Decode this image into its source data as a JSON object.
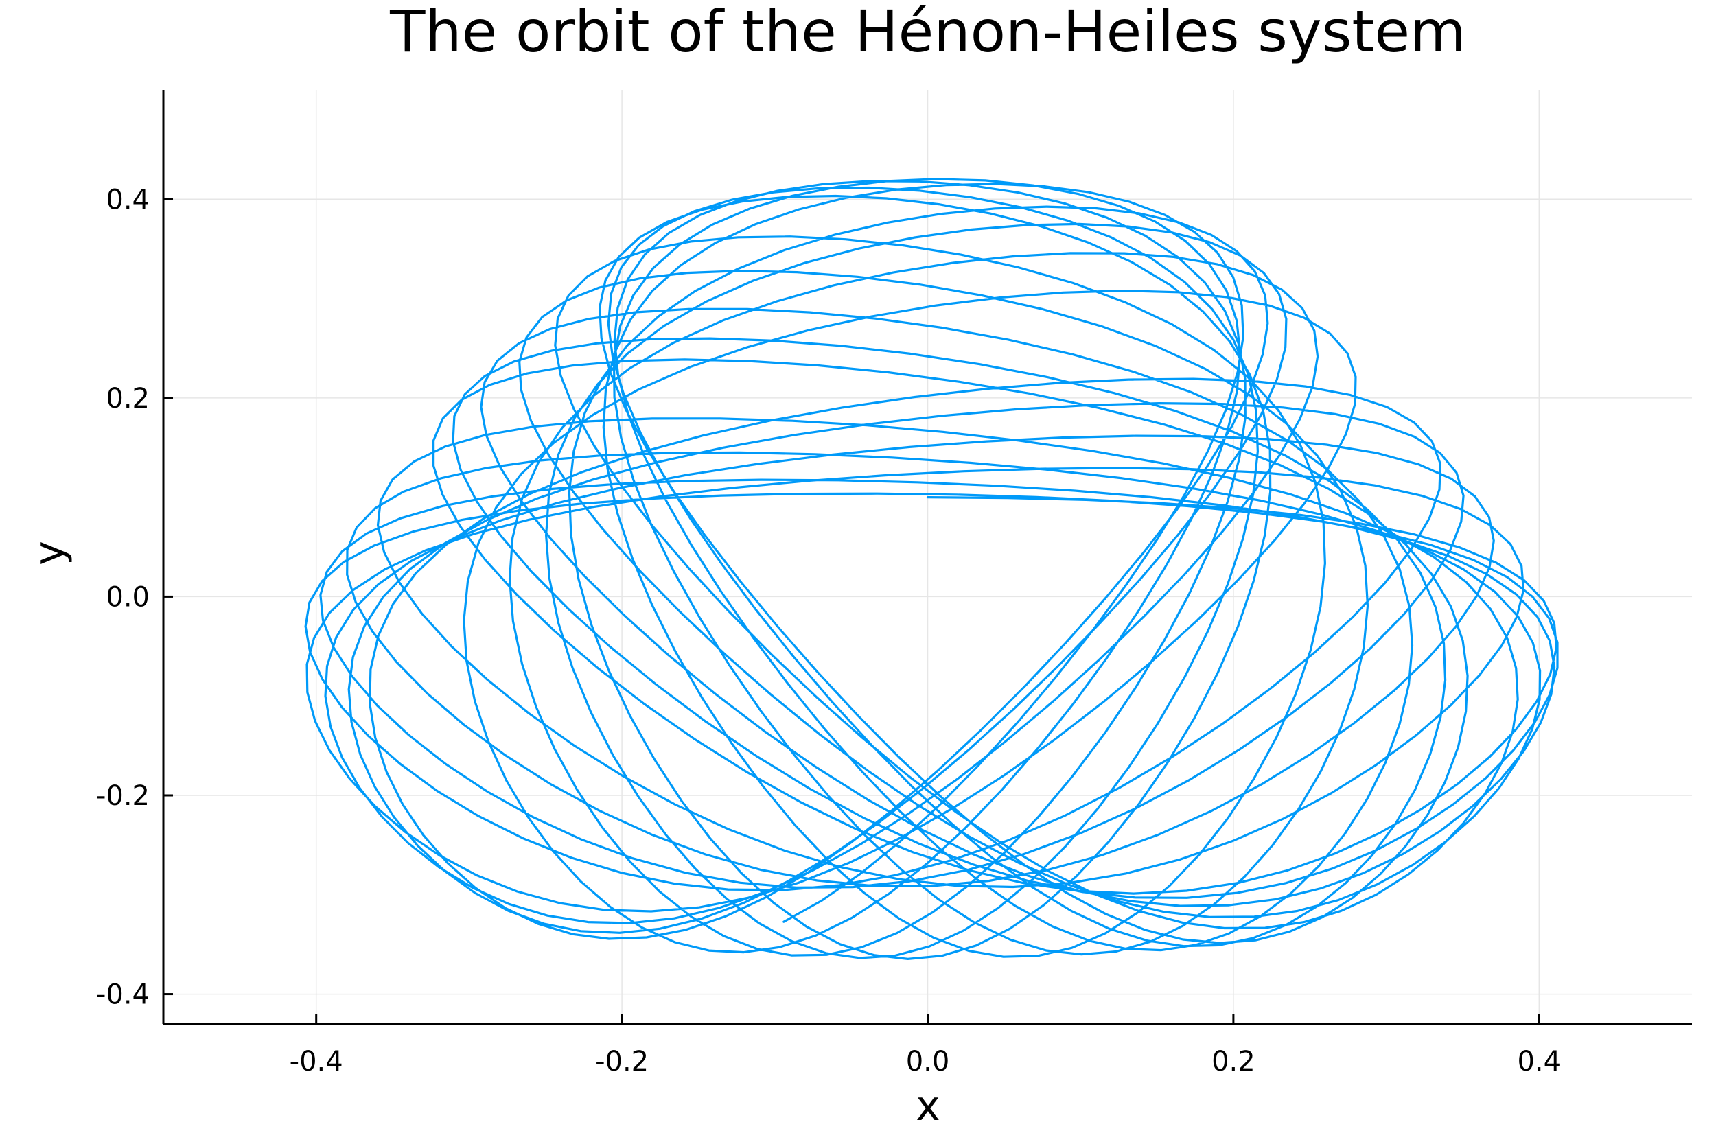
{
  "chart_data": {
    "type": "line",
    "title": "The orbit of the Hénon-Heiles system",
    "xlabel": "x",
    "ylabel": "y",
    "xlim": [
      -0.5,
      0.5
    ],
    "ylim": [
      -0.43,
      0.51
    ],
    "xticks": [
      -0.4,
      -0.2,
      0.0,
      0.2,
      0.4
    ],
    "xtick_labels": [
      "-0.4",
      "-0.2",
      "0.0",
      "0.2",
      "0.4"
    ],
    "yticks": [
      -0.4,
      -0.2,
      0.0,
      0.2,
      0.4
    ],
    "ytick_labels": [
      "-0.4",
      "-0.2",
      "0.0",
      "0.2",
      "0.4"
    ],
    "grid": true,
    "legend": false,
    "series": [
      {
        "color": "#009af9",
        "line_width": 1,
        "start": [
          0.0,
          0.1
        ],
        "end": [
          0.225,
          0.393
        ],
        "x_range": [
          -0.465,
          0.472
        ],
        "y_range": [
          -0.403,
          0.483
        ]
      }
    ]
  }
}
